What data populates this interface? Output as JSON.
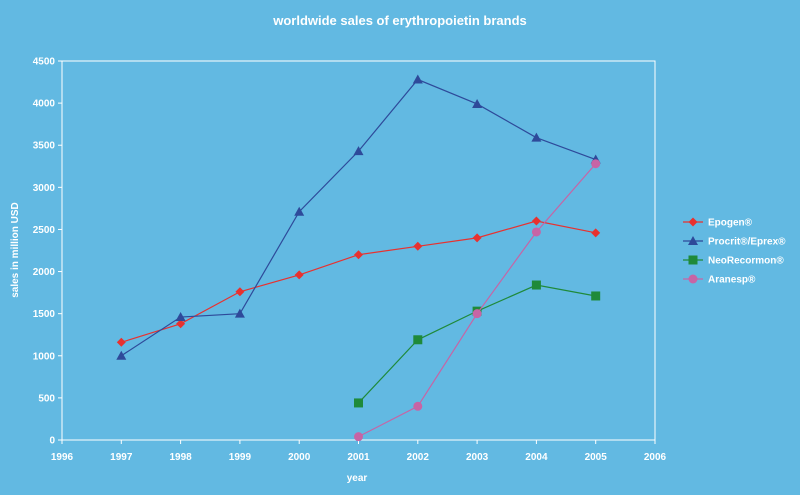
{
  "chart_data": {
    "type": "line",
    "title": "worldwide sales of erythropoietin brands",
    "xlabel": "year",
    "ylabel": "sales in million USD",
    "xlim": [
      1996,
      2006
    ],
    "ylim": [
      0,
      4500
    ],
    "x_ticks": [
      "1996",
      "1997",
      "1998",
      "1999",
      "2000",
      "2001",
      "2002",
      "2003",
      "2004",
      "2005",
      "2006"
    ],
    "y_ticks": [
      "0",
      "500",
      "1000",
      "1500",
      "2000",
      "2500",
      "3000",
      "3500",
      "4000",
      "4500"
    ],
    "grid": false,
    "legend_position": "right",
    "series": [
      {
        "name": "Epogen®",
        "color": "#e8312f",
        "marker": "diamond",
        "x": [
          1997,
          1998,
          1999,
          2000,
          2001,
          2002,
          2003,
          2004,
          2005
        ],
        "values": [
          1160,
          1380,
          1760,
          1960,
          2200,
          2300,
          2400,
          2600,
          2460
        ]
      },
      {
        "name": "Procrit®/Eprex®",
        "color": "#2e4a9a",
        "marker": "triangle",
        "x": [
          1997,
          1998,
          1999,
          2000,
          2001,
          2002,
          2003,
          2004,
          2005
        ],
        "values": [
          1000,
          1460,
          1500,
          2710,
          3430,
          4280,
          3990,
          3590,
          3330
        ]
      },
      {
        "name": "NeoRecormon®",
        "color": "#1f8a3a",
        "marker": "square",
        "x": [
          2001,
          2002,
          2003,
          2004,
          2005
        ],
        "values": [
          440,
          1190,
          1530,
          1840,
          1710
        ]
      },
      {
        "name": "Aranesp®",
        "color": "#c764a5",
        "marker": "circle",
        "x": [
          2001,
          2002,
          2003,
          2004,
          2005
        ],
        "values": [
          40,
          400,
          1500,
          2470,
          3280
        ]
      }
    ]
  }
}
